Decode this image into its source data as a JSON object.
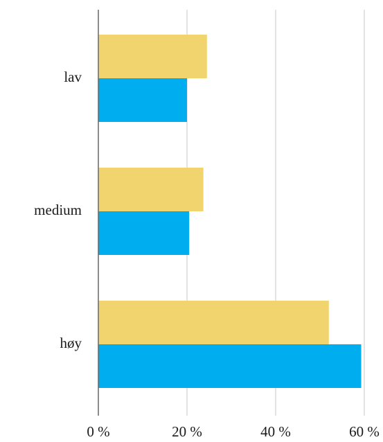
{
  "chart_data": {
    "type": "bar",
    "orientation": "horizontal",
    "categories": [
      "lav",
      "medium",
      "høy"
    ],
    "series": [
      {
        "values": [
          24.5,
          23.7,
          52.0
        ],
        "color": "#F2D46E"
      },
      {
        "values": [
          20.0,
          20.5,
          59.3
        ],
        "color": "#00AEEF"
      }
    ],
    "xlim": [
      0,
      60
    ],
    "xticks": [
      0,
      20,
      40,
      60
    ],
    "tick_labels": [
      "0 %",
      "20 %",
      "40 %",
      "60 %"
    ],
    "grid": true,
    "grid_color": "#C8C8C8",
    "axis_color": "#666666",
    "title": "",
    "xlabel": "",
    "ylabel": ""
  }
}
